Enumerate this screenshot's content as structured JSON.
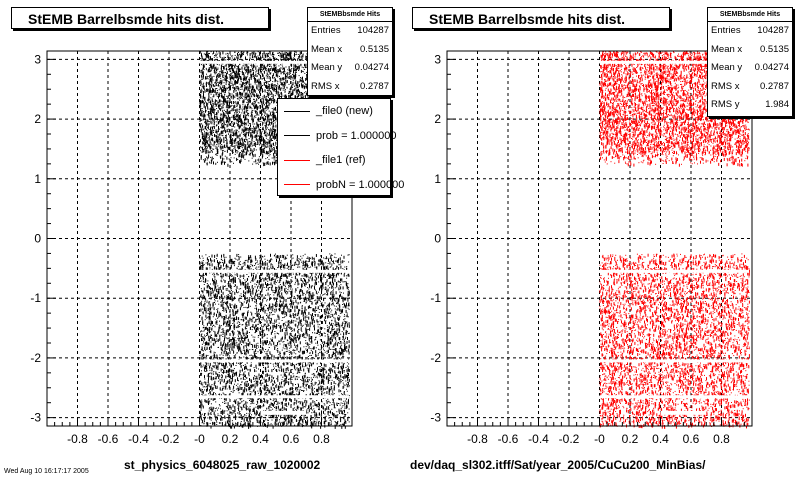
{
  "chart_data": [
    {
      "type": "scatter",
      "title": "StEMB Barrelbsmde hits dist.",
      "xlabel": "st_physics_6048025_raw_1020002",
      "xlim": [
        -1.0,
        1.0
      ],
      "ylim": [
        -3.14,
        3.14
      ],
      "x_ticks": [
        "-0.8",
        "-0.6",
        "-0.4",
        "-0.2",
        "-0",
        "0.2",
        "0.4",
        "0.6",
        "0.8"
      ],
      "y_ticks": [
        "3",
        "2",
        "1",
        "0",
        "-1",
        "-2",
        "-3"
      ],
      "grid": true,
      "marker_color": "#000000",
      "point_regions": [
        {
          "x": [
            0.0,
            0.98
          ],
          "y": [
            1.25,
            3.14
          ]
        },
        {
          "x": [
            0.0,
            0.98
          ],
          "y": [
            -3.14,
            -0.25
          ]
        }
      ],
      "stats": {
        "header": "StEMBbsmde Hits",
        "rows": [
          {
            "label": "Entries",
            "value": "104287"
          },
          {
            "label": "Mean x",
            "value": "0.5135"
          },
          {
            "label": "Mean y",
            "value": "0.04274"
          },
          {
            "label": "RMS x",
            "value": "0.2787"
          }
        ]
      },
      "legend": {
        "placement": "top-right",
        "entries": [
          {
            "label": "_file0 (new)",
            "color": "#000000"
          },
          {
            "label": "prob = 1.000000",
            "color": "#000000"
          },
          {
            "label": "_file1 (ref)",
            "color": "#ff0000"
          },
          {
            "label": "probN = 1.000000",
            "color": "#ff0000"
          }
        ]
      }
    },
    {
      "type": "scatter",
      "title": "StEMB Barrelbsmde hits dist.",
      "xlabel": "dev/daq_sl302.itff/Sat/year_2005/CuCu200_MinBias/",
      "xlim": [
        -1.0,
        1.0
      ],
      "ylim": [
        -3.14,
        3.14
      ],
      "x_ticks": [
        "-0.8",
        "-0.6",
        "-0.4",
        "-0.2",
        "-0",
        "0.2",
        "0.4",
        "0.6",
        "0.8"
      ],
      "y_ticks": [
        "3",
        "2",
        "1",
        "0",
        "-1",
        "-2",
        "-3"
      ],
      "grid": true,
      "marker_color": "#ff0000",
      "point_regions": [
        {
          "x": [
            0.0,
            0.98
          ],
          "y": [
            1.25,
            3.14
          ]
        },
        {
          "x": [
            0.0,
            0.98
          ],
          "y": [
            -3.14,
            -0.25
          ]
        }
      ],
      "stats": {
        "header": "StEMBbsmde Hits",
        "rows": [
          {
            "label": "Entries",
            "value": "104287"
          },
          {
            "label": "Mean x",
            "value": "0.5135"
          },
          {
            "label": "Mean y",
            "value": "0.04274"
          },
          {
            "label": "RMS x",
            "value": "0.2787"
          },
          {
            "label": "RMS y",
            "value": "1.984"
          }
        ]
      }
    }
  ],
  "footer": "Wed Aug 10 16:17:17 2005"
}
